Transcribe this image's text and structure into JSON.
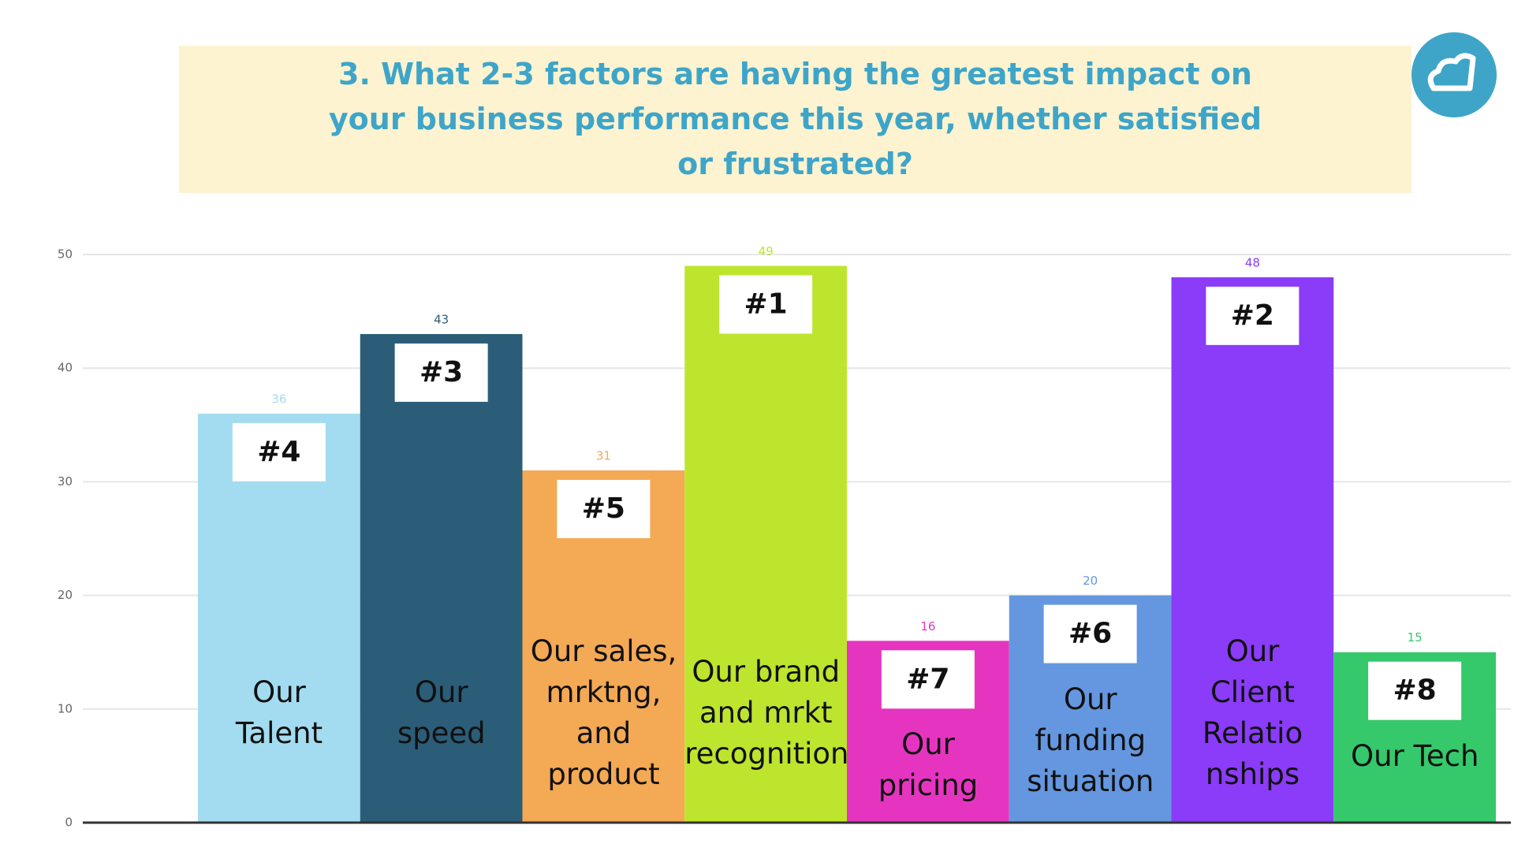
{
  "chart_data": {
    "type": "bar",
    "title": "3. What 2-3 factors are having the greatest impact on your business performance this year, whether satisfied or frustrated?",
    "categories": [
      "Our\nTalent",
      "Our\nspeed",
      "Our sales,\nmrktng,\nand\nproduct",
      "Our brand\nand mrkt\nrecognition",
      "Our\npricing",
      "Our\nfunding\nsituation",
      "Our\nClient\nRelatio\nnships",
      "Our Tech"
    ],
    "values": [
      36,
      43,
      31,
      49,
      16,
      20,
      48,
      15
    ],
    "ranks": [
      "#4",
      "#3",
      "#5",
      "#1",
      "#7",
      "#6",
      "#2",
      "#8"
    ],
    "colors": [
      "#a3dcf0",
      "#2b5d78",
      "#f4a955",
      "#bde52e",
      "#e535c0",
      "#6497e0",
      "#8a3cf8",
      "#35c96b"
    ],
    "ylim": [
      0,
      50
    ],
    "yticks": [
      0,
      10,
      20,
      30,
      40,
      50
    ],
    "grid": true
  }
}
